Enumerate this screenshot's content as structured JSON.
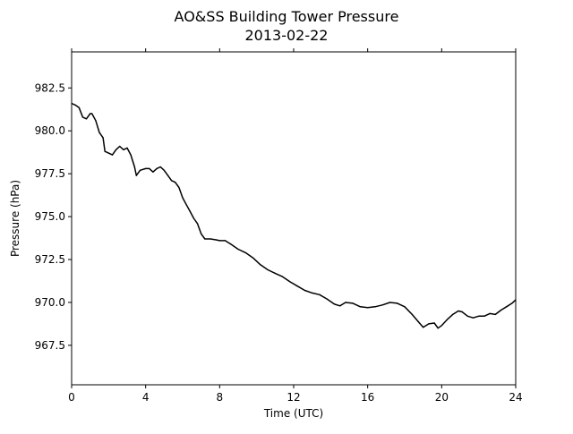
{
  "chart_data": {
    "type": "line",
    "title": "AO&SS Building Tower Pressure",
    "subtitle": "2013-02-22",
    "xlabel": "Time (UTC)",
    "ylabel": "Pressure (hPa)",
    "xlim": [
      0,
      24
    ],
    "ylim": [
      965.2,
      984.6
    ],
    "x_ticks": [
      0,
      4,
      8,
      12,
      16,
      20,
      24
    ],
    "y_ticks": [
      967.5,
      970.0,
      972.5,
      975.0,
      977.5,
      980.0,
      982.5
    ],
    "y_tick_labels": [
      "967.5",
      "970.0",
      "972.5",
      "975.0",
      "977.5",
      "980.0",
      "982.5"
    ],
    "grid": false,
    "legend": "none",
    "line_color": "#000000",
    "series": [
      {
        "points": [
          [
            0.0,
            981.6
          ],
          [
            0.2,
            981.5
          ],
          [
            0.4,
            981.35
          ],
          [
            0.6,
            980.8
          ],
          [
            0.8,
            980.7
          ],
          [
            1.0,
            981.0
          ],
          [
            1.1,
            981.0
          ],
          [
            1.3,
            980.6
          ],
          [
            1.5,
            979.9
          ],
          [
            1.7,
            979.6
          ],
          [
            1.8,
            978.8
          ],
          [
            2.0,
            978.7
          ],
          [
            2.2,
            978.6
          ],
          [
            2.4,
            978.9
          ],
          [
            2.6,
            979.1
          ],
          [
            2.8,
            978.9
          ],
          [
            3.0,
            979.0
          ],
          [
            3.2,
            978.6
          ],
          [
            3.4,
            977.9
          ],
          [
            3.5,
            977.4
          ],
          [
            3.7,
            977.7
          ],
          [
            4.0,
            977.8
          ],
          [
            4.2,
            977.8
          ],
          [
            4.4,
            977.6
          ],
          [
            4.6,
            977.8
          ],
          [
            4.8,
            977.9
          ],
          [
            5.0,
            977.7
          ],
          [
            5.2,
            977.4
          ],
          [
            5.4,
            977.1
          ],
          [
            5.6,
            977.0
          ],
          [
            5.8,
            976.7
          ],
          [
            6.0,
            976.1
          ],
          [
            6.2,
            975.7
          ],
          [
            6.4,
            975.3
          ],
          [
            6.6,
            974.9
          ],
          [
            6.8,
            974.6
          ],
          [
            7.0,
            974.0
          ],
          [
            7.2,
            973.7
          ],
          [
            7.5,
            973.7
          ],
          [
            7.8,
            973.65
          ],
          [
            8.0,
            973.6
          ],
          [
            8.3,
            973.6
          ],
          [
            8.6,
            973.4
          ],
          [
            9.0,
            973.1
          ],
          [
            9.4,
            972.9
          ],
          [
            9.8,
            972.6
          ],
          [
            10.2,
            972.2
          ],
          [
            10.6,
            971.9
          ],
          [
            11.0,
            971.7
          ],
          [
            11.4,
            971.5
          ],
          [
            11.8,
            971.2
          ],
          [
            12.2,
            970.95
          ],
          [
            12.6,
            970.7
          ],
          [
            13.0,
            970.55
          ],
          [
            13.4,
            970.45
          ],
          [
            13.8,
            970.2
          ],
          [
            14.2,
            969.9
          ],
          [
            14.5,
            969.8
          ],
          [
            14.8,
            970.0
          ],
          [
            15.2,
            969.95
          ],
          [
            15.6,
            969.75
          ],
          [
            16.0,
            969.7
          ],
          [
            16.4,
            969.75
          ],
          [
            16.8,
            969.85
          ],
          [
            17.2,
            970.0
          ],
          [
            17.6,
            969.95
          ],
          [
            18.0,
            969.75
          ],
          [
            18.4,
            969.3
          ],
          [
            18.8,
            968.8
          ],
          [
            19.0,
            968.55
          ],
          [
            19.3,
            968.75
          ],
          [
            19.6,
            968.8
          ],
          [
            19.8,
            968.5
          ],
          [
            20.0,
            968.65
          ],
          [
            20.3,
            969.0
          ],
          [
            20.6,
            969.3
          ],
          [
            20.9,
            969.5
          ],
          [
            21.1,
            969.45
          ],
          [
            21.4,
            969.2
          ],
          [
            21.7,
            969.1
          ],
          [
            22.0,
            969.2
          ],
          [
            22.3,
            969.2
          ],
          [
            22.6,
            969.35
          ],
          [
            22.9,
            969.3
          ],
          [
            23.2,
            969.55
          ],
          [
            23.5,
            969.75
          ],
          [
            23.8,
            969.95
          ],
          [
            24.0,
            970.15
          ]
        ]
      }
    ]
  }
}
